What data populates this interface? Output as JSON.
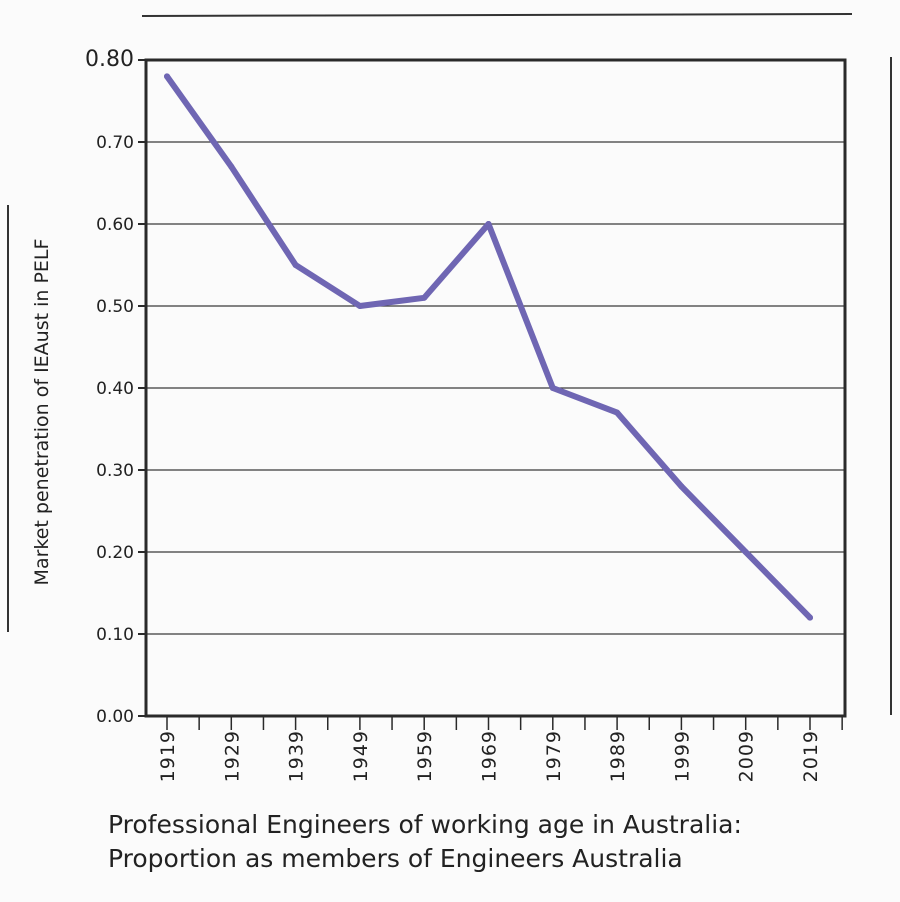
{
  "chart_data": {
    "type": "line",
    "title": "",
    "ylabel": "Market penetration of IEAust in PELF",
    "xlabel_lines": [
      "Professional Engineers of working age in Australia:",
      "Proportion as members of Engineers Australia"
    ],
    "ylim": [
      0,
      0.8
    ],
    "y_ticks": [
      "0.00",
      "0.10",
      "0.20",
      "0.30",
      "0.40",
      "0.50",
      "0.60",
      "0.70",
      "0.80"
    ],
    "x_ticks": [
      "1919",
      "1929",
      "1939",
      "1949",
      "1959",
      "1969",
      "1979",
      "1989",
      "1999",
      "2009",
      "2019"
    ],
    "grid": true,
    "legend": "none",
    "line_color": "#6f66b3",
    "series": [
      {
        "x": [
          1919,
          1929,
          1939,
          1949,
          1959,
          1969,
          1979,
          1989,
          1999,
          2009,
          2019
        ],
        "values": [
          0.78,
          0.67,
          0.55,
          0.5,
          0.51,
          0.6,
          0.4,
          0.37,
          0.28,
          0.2,
          0.12
        ]
      }
    ]
  }
}
